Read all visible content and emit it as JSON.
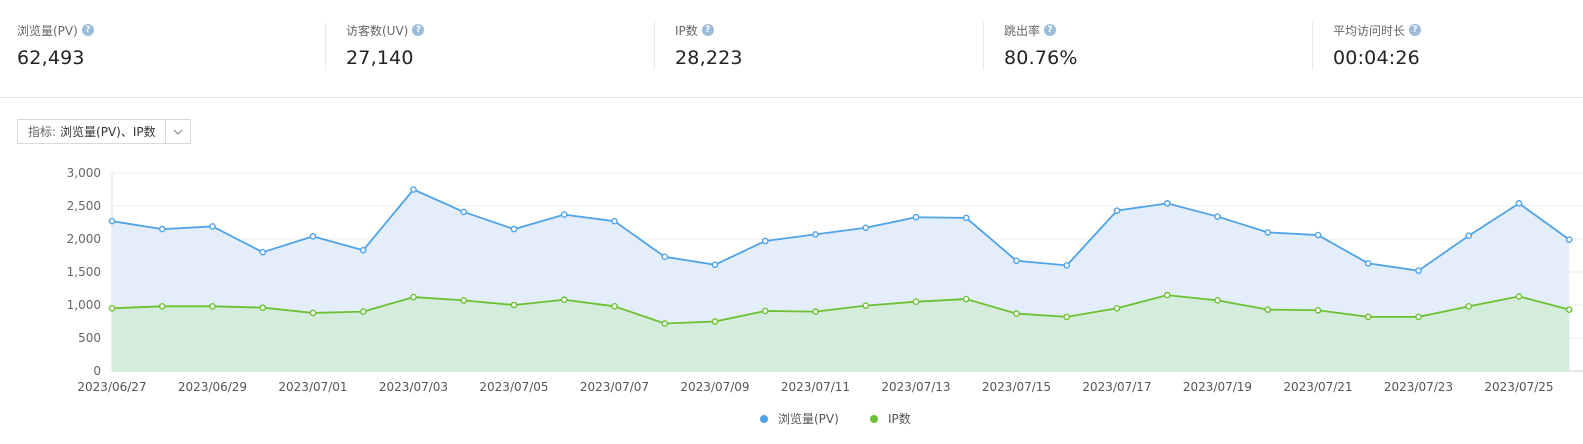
{
  "stats": [
    {
      "label": "浏览量(PV)",
      "value": "62,493"
    },
    {
      "label": "访客数(UV)",
      "value": "27,140"
    },
    {
      "label": "IP数",
      "value": "28,223"
    },
    {
      "label": "跳出率",
      "value": "80.76%"
    },
    {
      "label": "平均访问时长",
      "value": "00:04:26"
    }
  ],
  "selector": {
    "label": "指标:",
    "value": "浏览量(PV)、IP数"
  },
  "colors": {
    "pv": "#4fa3e6",
    "ip": "#6cc032",
    "pv_fill": "#e3eefa",
    "ip_fill": "#d4ecdb"
  },
  "chart_data": {
    "type": "area",
    "x": [
      "2023/06/27",
      "2023/06/28",
      "2023/06/29",
      "2023/06/30",
      "2023/07/01",
      "2023/07/02",
      "2023/07/03",
      "2023/07/04",
      "2023/07/05",
      "2023/07/06",
      "2023/07/07",
      "2023/07/08",
      "2023/07/09",
      "2023/07/10",
      "2023/07/11",
      "2023/07/12",
      "2023/07/13",
      "2023/07/14",
      "2023/07/15",
      "2023/07/16",
      "2023/07/17",
      "2023/07/18",
      "2023/07/19",
      "2023/07/20",
      "2023/07/21",
      "2023/07/22",
      "2023/07/23",
      "2023/07/24",
      "2023/07/25",
      "2023/07/26"
    ],
    "xticks": [
      "2023/06/27",
      "2023/06/29",
      "2023/07/01",
      "2023/07/03",
      "2023/07/05",
      "2023/07/07",
      "2023/07/09",
      "2023/07/11",
      "2023/07/13",
      "2023/07/15",
      "2023/07/17",
      "2023/07/19",
      "2023/07/21",
      "2023/07/23",
      "2023/07/25"
    ],
    "yticks": [
      "0",
      "500",
      "1,000",
      "1,500",
      "2,000",
      "2,500",
      "3,000"
    ],
    "ylim": [
      0,
      3000
    ],
    "grid": true,
    "legend": "bottom-center",
    "series": [
      {
        "name": "浏览量(PV)",
        "values": [
          2270,
          2150,
          2190,
          1800,
          2040,
          1830,
          2750,
          2410,
          2150,
          2370,
          2270,
          1730,
          1610,
          1970,
          2070,
          2170,
          2330,
          2320,
          1670,
          1600,
          2430,
          2540,
          2340,
          2100,
          2060,
          1630,
          1520,
          2050,
          2540,
          1990
        ]
      },
      {
        "name": "IP数",
        "values": [
          950,
          980,
          980,
          960,
          880,
          900,
          1120,
          1070,
          1000,
          1080,
          980,
          720,
          750,
          910,
          900,
          990,
          1050,
          1090,
          870,
          820,
          950,
          1150,
          1070,
          930,
          920,
          820,
          820,
          980,
          1130,
          930
        ]
      }
    ]
  }
}
